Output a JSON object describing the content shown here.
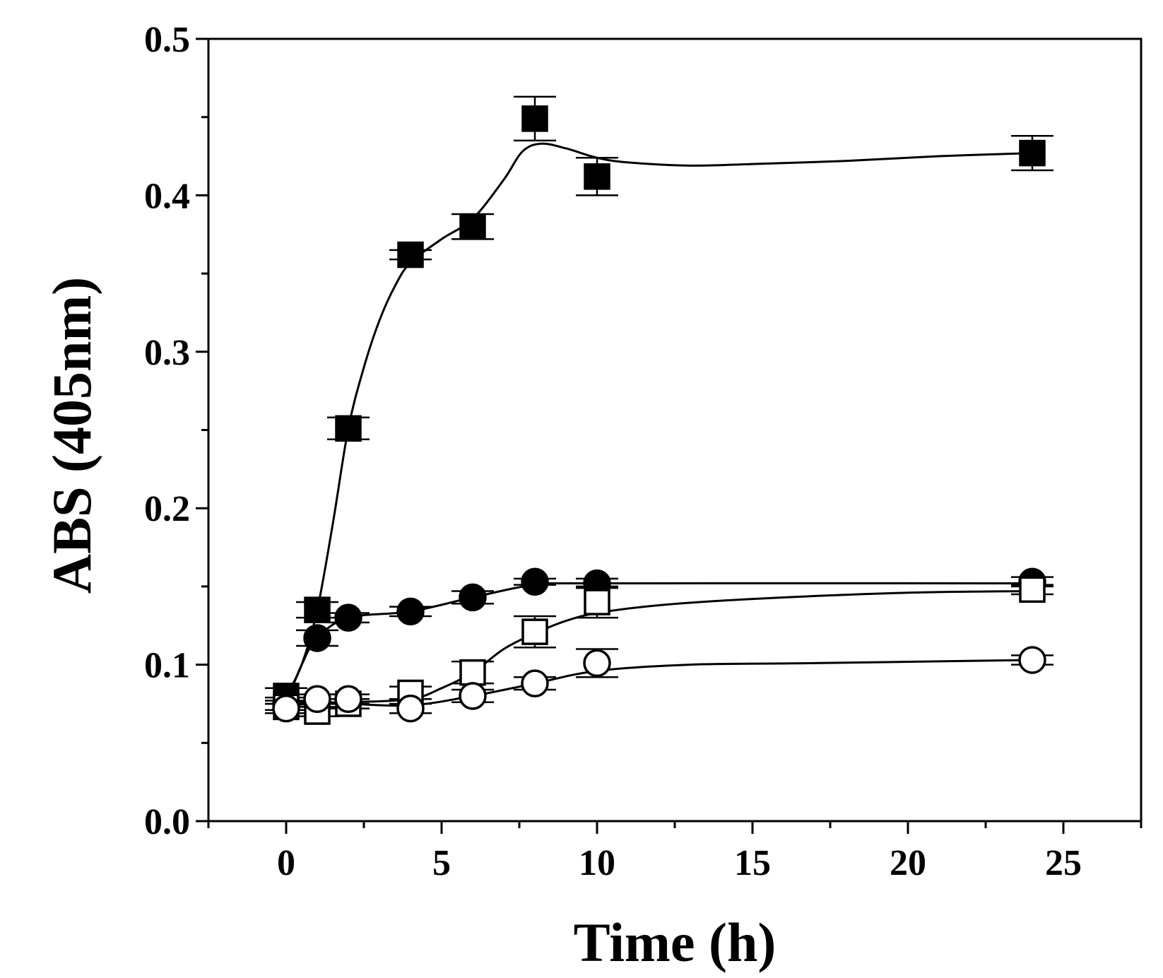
{
  "chart_data": {
    "type": "line",
    "title": "",
    "xlabel": "Time (h)",
    "ylabel": "ABS (405nm)",
    "xlim": [
      -2.5,
      27.5
    ],
    "ylim": [
      0.0,
      0.5
    ],
    "x_ticks": [
      0,
      5,
      10,
      15,
      20,
      25
    ],
    "x_tick_labels": [
      "0",
      "5",
      "10",
      "15",
      "20",
      "25"
    ],
    "y_ticks": [
      0.0,
      0.1,
      0.2,
      0.3,
      0.4,
      0.5
    ],
    "y_tick_labels": [
      "0.0",
      "0.1",
      "0.2",
      "0.3",
      "0.4",
      "0.5"
    ],
    "x_minor_step": 2.5,
    "y_minor_step": 0.05,
    "grid": false,
    "legend": "none",
    "series": [
      {
        "name": "filled-square",
        "marker": "square",
        "filled": true,
        "x": [
          0,
          1,
          2,
          4,
          6,
          8,
          10,
          24
        ],
        "y": [
          0.08,
          0.135,
          0.251,
          0.362,
          0.38,
          0.449,
          0.412,
          0.427
        ],
        "err": [
          0.005,
          0.005,
          0.007,
          0.003,
          0.008,
          0.014,
          0.012,
          0.011
        ],
        "curve": [
          [
            0,
            0.08
          ],
          [
            0.5,
            0.1
          ],
          [
            1,
            0.135
          ],
          [
            1.5,
            0.19
          ],
          [
            2,
            0.251
          ],
          [
            2.5,
            0.29
          ],
          [
            3,
            0.32
          ],
          [
            3.5,
            0.342
          ],
          [
            4,
            0.357
          ],
          [
            5,
            0.372
          ],
          [
            6,
            0.385
          ],
          [
            7,
            0.41
          ],
          [
            7.6,
            0.428
          ],
          [
            8.2,
            0.433
          ],
          [
            9,
            0.43
          ],
          [
            10,
            0.424
          ],
          [
            11,
            0.421
          ],
          [
            13,
            0.419
          ],
          [
            15,
            0.42
          ],
          [
            18,
            0.422
          ],
          [
            21,
            0.425
          ],
          [
            24,
            0.427
          ]
        ]
      },
      {
        "name": "filled-circle",
        "marker": "circle",
        "filled": true,
        "x": [
          0,
          1,
          2,
          4,
          6,
          8,
          10,
          24
        ],
        "y": [
          0.075,
          0.117,
          0.13,
          0.134,
          0.143,
          0.153,
          0.152,
          0.153
        ],
        "err": [
          0.004,
          0.005,
          0.003,
          0.003,
          0.004,
          0.002,
          0.003,
          0.003
        ],
        "curve": [
          [
            0,
            0.075
          ],
          [
            0.5,
            0.1
          ],
          [
            1,
            0.117
          ],
          [
            2,
            0.13
          ],
          [
            4,
            0.134
          ],
          [
            6,
            0.143
          ],
          [
            8,
            0.151
          ],
          [
            10,
            0.152
          ],
          [
            24,
            0.152
          ]
        ]
      },
      {
        "name": "open-square",
        "marker": "square",
        "filled": false,
        "x": [
          0,
          1,
          2,
          4,
          6,
          8,
          10,
          24
        ],
        "y": [
          0.073,
          0.07,
          0.075,
          0.082,
          0.095,
          0.121,
          0.14,
          0.148
        ],
        "err": [
          0.004,
          0.003,
          0.003,
          0.004,
          0.007,
          0.01,
          0.01,
          0.003
        ],
        "curve": [
          [
            0,
            0.076
          ],
          [
            1,
            0.076
          ],
          [
            2,
            0.076
          ],
          [
            4,
            0.078
          ],
          [
            5,
            0.085
          ],
          [
            6,
            0.095
          ],
          [
            7,
            0.11
          ],
          [
            8,
            0.12
          ],
          [
            9,
            0.128
          ],
          [
            10,
            0.133
          ],
          [
            12,
            0.138
          ],
          [
            15,
            0.142
          ],
          [
            20,
            0.146
          ],
          [
            24,
            0.147
          ]
        ]
      },
      {
        "name": "open-circle",
        "marker": "circle",
        "filled": false,
        "x": [
          0,
          1,
          2,
          4,
          6,
          8,
          10,
          24
        ],
        "y": [
          0.072,
          0.078,
          0.078,
          0.072,
          0.08,
          0.088,
          0.101,
          0.103
        ],
        "err": [
          0.003,
          0.003,
          0.003,
          0.003,
          0.004,
          0.004,
          0.009,
          0.003
        ],
        "curve": [
          [
            0,
            0.074
          ],
          [
            1,
            0.075
          ],
          [
            2,
            0.075
          ],
          [
            4,
            0.074
          ],
          [
            6,
            0.08
          ],
          [
            8,
            0.088
          ],
          [
            10,
            0.096
          ],
          [
            13,
            0.1
          ],
          [
            17,
            0.101
          ],
          [
            24,
            0.103
          ]
        ]
      }
    ]
  }
}
